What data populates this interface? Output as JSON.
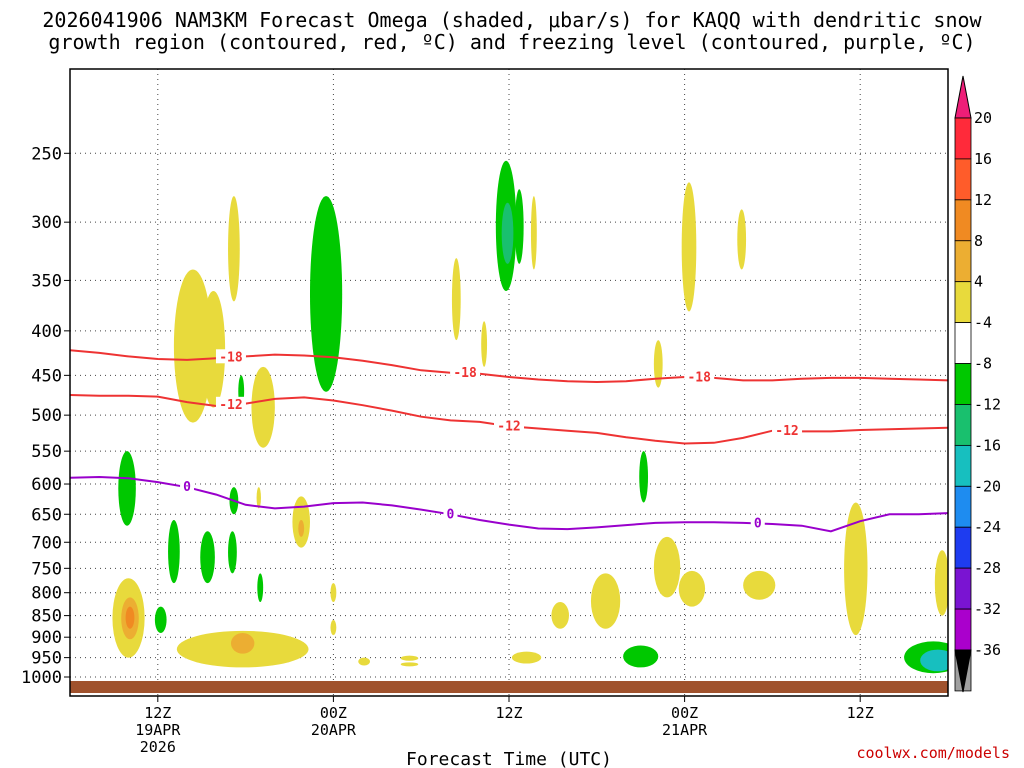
{
  "title_line1": "2026041906 NAM3KM Forecast Omega (shaded, μbar/s) for KAQQ with dendritic snow",
  "title_line2": "growth region (contoured, red, ºC) and freezing level (contoured, purple, ºC)",
  "credit": "coolwx.com/models",
  "chart_data": {
    "type": "contour",
    "xlabel": "Forecast Time (UTC)",
    "ylabel": "",
    "ylim": [
      1000,
      200
    ],
    "y_ticks": [
      250,
      300,
      350,
      400,
      450,
      500,
      550,
      600,
      650,
      700,
      750,
      800,
      850,
      900,
      950,
      1000
    ],
    "x_range_hours": [
      0,
      60
    ],
    "x_ticks": [
      {
        "hour": 6,
        "lines": [
          "12Z",
          "19APR",
          "2026"
        ]
      },
      {
        "hour": 18,
        "lines": [
          "00Z",
          "20APR"
        ]
      },
      {
        "hour": 30,
        "lines": [
          "12Z"
        ]
      },
      {
        "hour": 42,
        "lines": [
          "00Z",
          "21APR"
        ]
      },
      {
        "hour": 54,
        "lines": [
          "12Z"
        ]
      }
    ],
    "grid": true,
    "colorbar": {
      "levels": [
        "20",
        "16",
        "12",
        "8",
        "4",
        "-4",
        "-8",
        "-12",
        "-16",
        "-20",
        "-24",
        "-28",
        "-32",
        "-36"
      ],
      "colors": [
        "#ff2a3a",
        "#ff5c2a",
        "#f08a22",
        "#ecae32",
        "#e8da3c",
        "#ffffff",
        "#00c800",
        "#19c06e",
        "#17bfbf",
        "#1e8cf0",
        "#1e3cf0",
        "#7a14d2",
        "#aa00cc",
        "#a0a0a0"
      ],
      "top_arrow_color": "#ee1e78",
      "bottom_arrow_color": "#000000"
    },
    "ground_color": "#a0522d",
    "contours": [
      {
        "label": "-18",
        "color": "#ee3333",
        "label_positions_hours": [
          11,
          27,
          43
        ],
        "points": [
          [
            0,
            421
          ],
          [
            2,
            424
          ],
          [
            4,
            428
          ],
          [
            6,
            431
          ],
          [
            8,
            432
          ],
          [
            10,
            430
          ],
          [
            12,
            428
          ],
          [
            14,
            426
          ],
          [
            16,
            427
          ],
          [
            18,
            429
          ],
          [
            20,
            433
          ],
          [
            22,
            438
          ],
          [
            24,
            444
          ],
          [
            26,
            447
          ],
          [
            28,
            448
          ],
          [
            30,
            452
          ],
          [
            32,
            455
          ],
          [
            34,
            457
          ],
          [
            36,
            458
          ],
          [
            38,
            457
          ],
          [
            40,
            454
          ],
          [
            42,
            452
          ],
          [
            44,
            453
          ],
          [
            46,
            456
          ],
          [
            48,
            456
          ],
          [
            50,
            454
          ],
          [
            52,
            453
          ],
          [
            54,
            453
          ],
          [
            56,
            454
          ],
          [
            58,
            455
          ],
          [
            60,
            456
          ]
        ]
      },
      {
        "label": "-12",
        "color": "#ee3333",
        "label_positions_hours": [
          11,
          30,
          49
        ],
        "points": [
          [
            0,
            474
          ],
          [
            2,
            475
          ],
          [
            4,
            475
          ],
          [
            6,
            476
          ],
          [
            8,
            483
          ],
          [
            10,
            488
          ],
          [
            12,
            485
          ],
          [
            14,
            479
          ],
          [
            16,
            477
          ],
          [
            18,
            481
          ],
          [
            20,
            487
          ],
          [
            22,
            494
          ],
          [
            24,
            502
          ],
          [
            26,
            507
          ],
          [
            28,
            509
          ],
          [
            30,
            515
          ],
          [
            32,
            518
          ],
          [
            34,
            521
          ],
          [
            36,
            524
          ],
          [
            38,
            530
          ],
          [
            40,
            535
          ],
          [
            42,
            539
          ],
          [
            44,
            538
          ],
          [
            46,
            531
          ],
          [
            48,
            521
          ],
          [
            50,
            522
          ],
          [
            52,
            522
          ],
          [
            54,
            520
          ],
          [
            56,
            519
          ],
          [
            58,
            518
          ],
          [
            60,
            517
          ]
        ]
      },
      {
        "label": "0",
        "color": "#9900cc",
        "label_positions_hours": [
          8,
          26,
          47
        ],
        "points": [
          [
            0,
            590
          ],
          [
            2,
            589
          ],
          [
            4,
            591
          ],
          [
            6,
            597
          ],
          [
            8,
            605
          ],
          [
            10,
            617
          ],
          [
            12,
            634
          ],
          [
            14,
            640
          ],
          [
            16,
            637
          ],
          [
            18,
            631
          ],
          [
            20,
            630
          ],
          [
            22,
            635
          ],
          [
            24,
            642
          ],
          [
            26,
            650
          ],
          [
            28,
            660
          ],
          [
            30,
            668
          ],
          [
            32,
            675
          ],
          [
            34,
            676
          ],
          [
            36,
            673
          ],
          [
            38,
            669
          ],
          [
            40,
            665
          ],
          [
            42,
            664
          ],
          [
            44,
            664
          ],
          [
            46,
            665
          ],
          [
            48,
            667
          ],
          [
            50,
            670
          ],
          [
            52,
            680
          ],
          [
            54,
            662
          ],
          [
            56,
            650
          ],
          [
            58,
            650
          ],
          [
            60,
            648
          ]
        ]
      }
    ],
    "omega_regions": [
      {
        "value": -8,
        "color": "#00c800",
        "center": [
          3.9,
          620
        ],
        "radius_hours": 0.6,
        "p_top": 550,
        "p_bottom": 670
      },
      {
        "value": -8,
        "color": "#00c800",
        "center": [
          6.2,
          860
        ],
        "radius_hours": 0.4,
        "p_top": 830,
        "p_bottom": 890
      },
      {
        "value": -8,
        "color": "#00c800",
        "center": [
          7.1,
          720
        ],
        "radius_hours": 0.4,
        "p_top": 660,
        "p_bottom": 780
      },
      {
        "value": -8,
        "color": "#00c800",
        "center": [
          9.4,
          730
        ],
        "radius_hours": 0.5,
        "p_top": 680,
        "p_bottom": 780
      },
      {
        "value": -8,
        "color": "#00c800",
        "center": [
          11.1,
          715
        ],
        "radius_hours": 0.3,
        "p_top": 680,
        "p_bottom": 760
      },
      {
        "value": -8,
        "color": "#00c800",
        "center": [
          11.2,
          625
        ],
        "radius_hours": 0.3,
        "p_top": 605,
        "p_bottom": 650
      },
      {
        "value": -8,
        "color": "#00c800",
        "center": [
          13.0,
          790
        ],
        "radius_hours": 0.2,
        "p_top": 760,
        "p_bottom": 820
      },
      {
        "value": -8,
        "color": "#00c800",
        "center": [
          11.7,
          468
        ],
        "radius_hours": 0.2,
        "p_top": 450,
        "p_bottom": 490
      },
      {
        "value": -8,
        "color": "#00c800",
        "center": [
          17.5,
          350
        ],
        "radius_hours": 1.1,
        "p_top": 280,
        "p_bottom": 470
      },
      {
        "value": -8,
        "color": "#00c800",
        "center": [
          29.8,
          300
        ],
        "radius_hours": 0.7,
        "p_top": 255,
        "p_bottom": 360
      },
      {
        "value": -12,
        "color": "#19c06e",
        "center": [
          29.9,
          305
        ],
        "radius_hours": 0.4,
        "p_top": 285,
        "p_bottom": 335
      },
      {
        "value": -8,
        "color": "#00c800",
        "center": [
          30.7,
          305
        ],
        "radius_hours": 0.3,
        "p_top": 275,
        "p_bottom": 335
      },
      {
        "value": -8,
        "color": "#00c800",
        "center": [
          39.2,
          585
        ],
        "radius_hours": 0.3,
        "p_top": 550,
        "p_bottom": 630
      },
      {
        "value": -8,
        "color": "#00c800",
        "center": [
          39.0,
          945
        ],
        "radius_hours": 1.2,
        "p_top": 920,
        "p_bottom": 975
      },
      {
        "value": -8,
        "color": "#00c800",
        "center": [
          59.0,
          950
        ],
        "radius_hours": 2.0,
        "p_top": 910,
        "p_bottom": 990
      },
      {
        "value": -16,
        "color": "#17bfbf",
        "center": [
          59.3,
          955
        ],
        "radius_hours": 1.2,
        "p_top": 930,
        "p_bottom": 985
      },
      {
        "value": 4,
        "color": "#e8da3c",
        "center": [
          4.0,
          830
        ],
        "radius_hours": 1.1,
        "p_top": 770,
        "p_bottom": 950
      },
      {
        "value": 8,
        "color": "#ecae32",
        "center": [
          4.1,
          850
        ],
        "radius_hours": 0.6,
        "p_top": 810,
        "p_bottom": 905
      },
      {
        "value": 12,
        "color": "#f08a22",
        "center": [
          4.1,
          855
        ],
        "radius_hours": 0.3,
        "p_top": 830,
        "p_bottom": 880
      },
      {
        "value": 4,
        "color": "#e8da3c",
        "center": [
          8.4,
          430
        ],
        "radius_hours": 1.3,
        "p_top": 340,
        "p_bottom": 510
      },
      {
        "value": 4,
        "color": "#e8da3c",
        "center": [
          9.8,
          430
        ],
        "radius_hours": 0.8,
        "p_top": 360,
        "p_bottom": 490
      },
      {
        "value": 4,
        "color": "#e8da3c",
        "center": [
          11.2,
          320
        ],
        "radius_hours": 0.4,
        "p_top": 280,
        "p_bottom": 370
      },
      {
        "value": 4,
        "color": "#e8da3c",
        "center": [
          13.2,
          495
        ],
        "radius_hours": 0.8,
        "p_top": 440,
        "p_bottom": 545
      },
      {
        "value": 4,
        "color": "#e8da3c",
        "center": [
          11.8,
          930
        ],
        "radius_hours": 4.5,
        "p_top": 885,
        "p_bottom": 975
      },
      {
        "value": 8,
        "color": "#ecae32",
        "center": [
          11.8,
          915
        ],
        "radius_hours": 0.8,
        "p_top": 890,
        "p_bottom": 940
      },
      {
        "value": 4,
        "color": "#e8da3c",
        "center": [
          15.8,
          670
        ],
        "radius_hours": 0.6,
        "p_top": 620,
        "p_bottom": 710
      },
      {
        "value": 8,
        "color": "#ecae32",
        "center": [
          15.8,
          675
        ],
        "radius_hours": 0.2,
        "p_top": 660,
        "p_bottom": 690
      },
      {
        "value": 4,
        "color": "#e8da3c",
        "center": [
          12.9,
          618
        ],
        "radius_hours": 0.15,
        "p_top": 605,
        "p_bottom": 640
      },
      {
        "value": 4,
        "color": "#e8da3c",
        "center": [
          18.0,
          800
        ],
        "radius_hours": 0.2,
        "p_top": 780,
        "p_bottom": 820
      },
      {
        "value": 4,
        "color": "#e8da3c",
        "center": [
          18.0,
          875
        ],
        "radius_hours": 0.2,
        "p_top": 860,
        "p_bottom": 895
      },
      {
        "value": 4,
        "color": "#e8da3c",
        "center": [
          20.1,
          960
        ],
        "radius_hours": 0.4,
        "p_top": 950,
        "p_bottom": 970
      },
      {
        "value": 4,
        "color": "#e8da3c",
        "center": [
          23.2,
          952
        ],
        "radius_hours": 0.6,
        "p_top": 945,
        "p_bottom": 958
      },
      {
        "value": 4,
        "color": "#e8da3c",
        "center": [
          23.2,
          967
        ],
        "radius_hours": 0.6,
        "p_top": 962,
        "p_bottom": 972
      },
      {
        "value": 4,
        "color": "#e8da3c",
        "center": [
          26.4,
          365
        ],
        "radius_hours": 0.3,
        "p_top": 330,
        "p_bottom": 410
      },
      {
        "value": 4,
        "color": "#e8da3c",
        "center": [
          28.3,
          415
        ],
        "radius_hours": 0.2,
        "p_top": 390,
        "p_bottom": 440
      },
      {
        "value": 4,
        "color": "#e8da3c",
        "center": [
          31.7,
          300
        ],
        "radius_hours": 0.2,
        "p_top": 280,
        "p_bottom": 340
      },
      {
        "value": 4,
        "color": "#e8da3c",
        "center": [
          31.2,
          950
        ],
        "radius_hours": 1.0,
        "p_top": 935,
        "p_bottom": 965
      },
      {
        "value": 4,
        "color": "#e8da3c",
        "center": [
          33.5,
          845
        ],
        "radius_hours": 0.6,
        "p_top": 820,
        "p_bottom": 880
      },
      {
        "value": 4,
        "color": "#e8da3c",
        "center": [
          36.6,
          810
        ],
        "radius_hours": 1.0,
        "p_top": 760,
        "p_bottom": 880
      },
      {
        "value": 4,
        "color": "#e8da3c",
        "center": [
          40.8,
          750
        ],
        "radius_hours": 0.9,
        "p_top": 690,
        "p_bottom": 810
      },
      {
        "value": 4,
        "color": "#e8da3c",
        "center": [
          42.5,
          790
        ],
        "radius_hours": 0.9,
        "p_top": 755,
        "p_bottom": 830
      },
      {
        "value": 4,
        "color": "#e8da3c",
        "center": [
          40.2,
          440
        ],
        "radius_hours": 0.3,
        "p_top": 410,
        "p_bottom": 465
      },
      {
        "value": 4,
        "color": "#e8da3c",
        "center": [
          42.3,
          320
        ],
        "radius_hours": 0.5,
        "p_top": 270,
        "p_bottom": 380
      },
      {
        "value": 4,
        "color": "#e8da3c",
        "center": [
          45.9,
          315
        ],
        "radius_hours": 0.3,
        "p_top": 290,
        "p_bottom": 340
      },
      {
        "value": 4,
        "color": "#e8da3c",
        "center": [
          47.1,
          785
        ],
        "radius_hours": 1.1,
        "p_top": 755,
        "p_bottom": 815
      },
      {
        "value": 4,
        "color": "#e8da3c",
        "center": [
          53.7,
          720
        ],
        "radius_hours": 0.8,
        "p_top": 630,
        "p_bottom": 895
      },
      {
        "value": 4,
        "color": "#e8da3c",
        "center": [
          59.6,
          790
        ],
        "radius_hours": 0.5,
        "p_top": 715,
        "p_bottom": 850
      }
    ]
  }
}
